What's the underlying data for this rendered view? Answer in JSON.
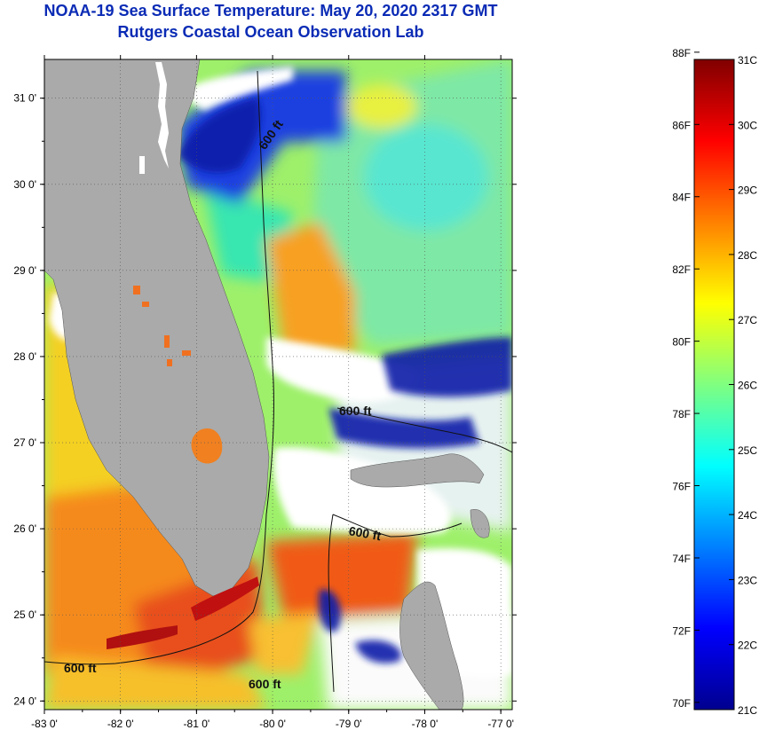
{
  "header": {
    "title": "NOAA-19 Sea Surface Temperature:  May 20, 2020 2317 GMT",
    "subtitle": "Rutgers Coastal Ocean Observation Lab"
  },
  "map": {
    "lon_labels": [
      "-83 0'",
      "-82 0'",
      "-81 0'",
      "-80 0'",
      "-79 0'",
      "-78 0'",
      "-77 0'"
    ],
    "lat_labels": [
      "31 0'",
      "30 0'",
      "29 0'",
      "28 0'",
      "27 0'",
      "26 0'",
      "25 0'",
      "24 0'"
    ],
    "lon_range": [
      -83,
      -76.85
    ],
    "lat_range": [
      23.9,
      31.45
    ],
    "contour_label": "600 ft",
    "contour_depth": "600 ft"
  },
  "colorbar": {
    "f_labels": [
      "88F",
      "86F",
      "84F",
      "82F",
      "80F",
      "78F",
      "76F",
      "74F",
      "72F",
      "70F"
    ],
    "c_labels": [
      "31C",
      "30C",
      "29C",
      "28C",
      "27C",
      "26C",
      "25C",
      "24C",
      "23C",
      "22C",
      "21C"
    ],
    "range_c": [
      21,
      31
    ],
    "colors": [
      "#00008f",
      "#0000ff",
      "#0080ff",
      "#00ffff",
      "#80ff80",
      "#ffff00",
      "#ff8000",
      "#ff0000",
      "#800000"
    ]
  },
  "colors": {
    "land": "#aaaaaa",
    "cloud": "#ffffff",
    "title": "#0a2bb5"
  }
}
